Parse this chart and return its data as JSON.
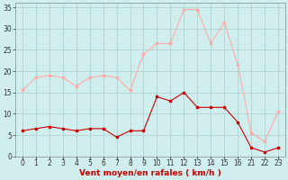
{
  "x_indices": [
    0,
    1,
    2,
    3,
    4,
    5,
    6,
    7,
    8,
    9,
    10,
    11,
    12,
    13,
    14,
    15,
    16,
    17,
    18,
    19
  ],
  "x_labels": [
    "0",
    "1",
    "2",
    "3",
    "4",
    "5",
    "6",
    "7",
    "8",
    "9",
    "10",
    "11",
    "12",
    "13",
    "14",
    "15",
    "16",
    "21",
    "22",
    "23"
  ],
  "wind_avg": [
    6,
    6.5,
    7,
    6.5,
    6,
    6.5,
    6.5,
    4.5,
    6,
    6,
    14,
    13,
    15,
    11.5,
    11.5,
    11.5,
    8,
    2,
    1,
    2
  ],
  "wind_gust": [
    15.5,
    18.5,
    19,
    18.5,
    16.5,
    18.5,
    19,
    18.5,
    15.5,
    24,
    26.5,
    26.5,
    34.5,
    34.5,
    26.5,
    31.5,
    21.5,
    5.5,
    3.5,
    10.5
  ],
  "line_avg_color": "#cc0000",
  "line_gust_color": "#ffaaaa",
  "bg_color": "#d0eeee",
  "grid_color": "#aacccc",
  "xlabel": "Vent moyen/en rafales ( km/h )",
  "xlabel_color": "#cc0000",
  "ylim": [
    0,
    36
  ],
  "yticks": [
    0,
    5,
    10,
    15,
    20,
    25,
    30,
    35
  ],
  "tick_fontsize": 5.5,
  "axis_fontsize": 6.5
}
